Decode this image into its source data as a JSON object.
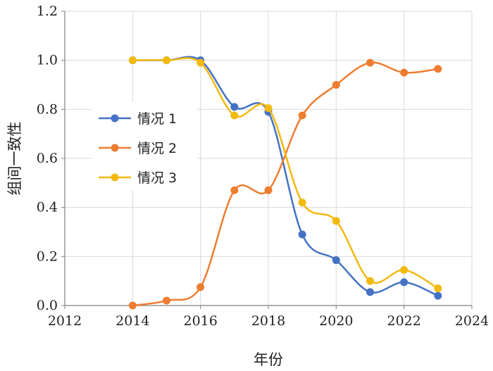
{
  "chart_data": {
    "type": "line",
    "xlabel": "年份",
    "ylabel": "组间一致性",
    "xlim": [
      2012,
      2024
    ],
    "ylim": [
      0,
      1.2
    ],
    "xticks": [
      "2012",
      "2014",
      "2016",
      "2018",
      "2020",
      "2022",
      "2024"
    ],
    "yticks": [
      "0.0",
      "0.2",
      "0.4",
      "0.6",
      "0.8",
      "1.0",
      "1.2"
    ],
    "grid": true,
    "legend_position": "left-middle",
    "series": [
      {
        "name": "情况 1",
        "color": "#4472c4",
        "x": [
          2014,
          2015,
          2016,
          2017,
          2018,
          2019,
          2020,
          2021,
          2022,
          2023
        ],
        "y": [
          1.0,
          1.0,
          1.0,
          0.81,
          0.79,
          0.29,
          0.185,
          0.055,
          0.095,
          0.04
        ]
      },
      {
        "name": "情况 2",
        "color": "#ed7d31",
        "x": [
          2014,
          2015,
          2016,
          2017,
          2018,
          2019,
          2020,
          2021,
          2022,
          2023
        ],
        "y": [
          0.0,
          0.02,
          0.075,
          0.47,
          0.47,
          0.775,
          0.9,
          0.99,
          0.95,
          0.965
        ]
      },
      {
        "name": "情况 3",
        "color": "#f2b90f",
        "x": [
          2014,
          2015,
          2016,
          2017,
          2018,
          2019,
          2020,
          2021,
          2022,
          2023
        ],
        "y": [
          1.0,
          1.0,
          0.99,
          0.775,
          0.805,
          0.42,
          0.345,
          0.1,
          0.145,
          0.07
        ]
      }
    ]
  }
}
